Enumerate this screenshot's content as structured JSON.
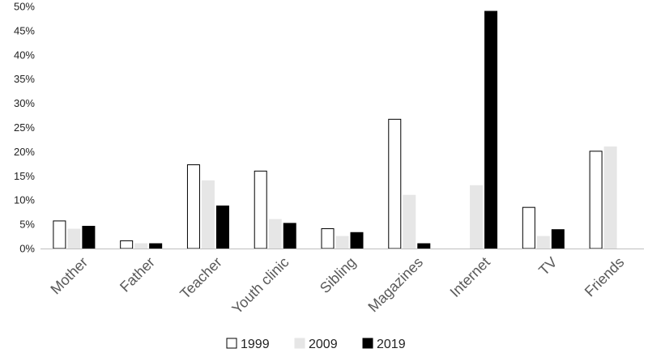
{
  "chart_data": {
    "type": "bar",
    "categories": [
      "Mother",
      "Father",
      "Teacher",
      "Youth clinic",
      "Sibling",
      "Magazines",
      "Internet",
      "TV",
      "Friends"
    ],
    "series": [
      {
        "name": "1999",
        "color": "#ffffff",
        "stroke": "#000000",
        "values": [
          5.7,
          1.6,
          17.3,
          16.0,
          4.1,
          26.7,
          0,
          8.5,
          20.1
        ]
      },
      {
        "name": "2009",
        "color": "#e6e6e6",
        "stroke": "#e6e6e6",
        "values": [
          4.0,
          1.0,
          14.0,
          6.0,
          2.5,
          11.0,
          13.0,
          2.5,
          21.0
        ]
      },
      {
        "name": "2019",
        "color": "#000000",
        "stroke": "#000000",
        "values": [
          4.6,
          1.0,
          8.8,
          5.2,
          3.3,
          1.0,
          49.0,
          3.9,
          0
        ]
      }
    ],
    "ylim": [
      0,
      50
    ],
    "yticks": [
      0,
      5,
      10,
      15,
      20,
      25,
      30,
      35,
      40,
      45,
      50
    ],
    "ytick_labels": [
      "0%",
      "5%",
      "10%",
      "15%",
      "20%",
      "25%",
      "30%",
      "35%",
      "40%",
      "45%",
      "50%"
    ],
    "title": "",
    "xlabel": "",
    "ylabel": "",
    "legend_position": "bottom-center",
    "grid": false
  }
}
